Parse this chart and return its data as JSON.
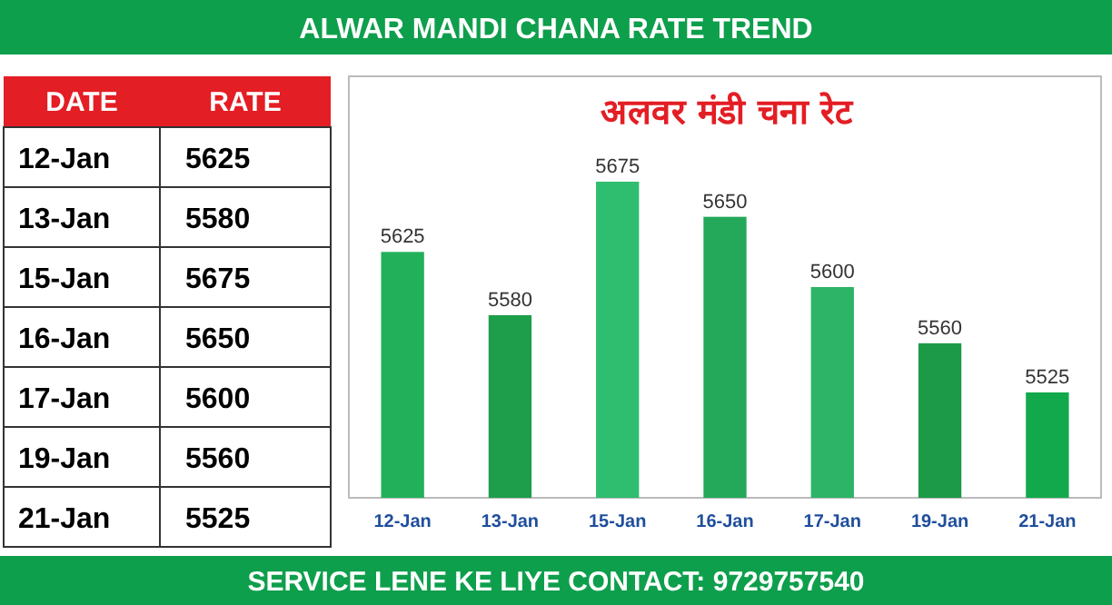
{
  "chart_data": {
    "type": "bar",
    "title": "ALWAR MANDI CHANA RATE TREND",
    "subtitle": "अलवर मंडी चना रेट",
    "categories": [
      "12-Jan",
      "13-Jan",
      "15-Jan",
      "16-Jan",
      "17-Jan",
      "19-Jan",
      "21-Jan"
    ],
    "values": [
      5625,
      5580,
      5675,
      5650,
      5600,
      5560,
      5525
    ],
    "colors": [
      "#22b05a",
      "#1e9e4a",
      "#2fbd6f",
      "#24a85a",
      "#2db467",
      "#1c9a48",
      "#12a84c"
    ],
    "ylim": [
      5450,
      5750
    ],
    "data_labels": true,
    "annotations": [
      "DATE",
      "RATE",
      "5625",
      "5580",
      "5675",
      "5650",
      "5600",
      "5560",
      "5525",
      "SERVICE LENE KE LIYE CONTACT: 9729757540"
    ]
  }
}
